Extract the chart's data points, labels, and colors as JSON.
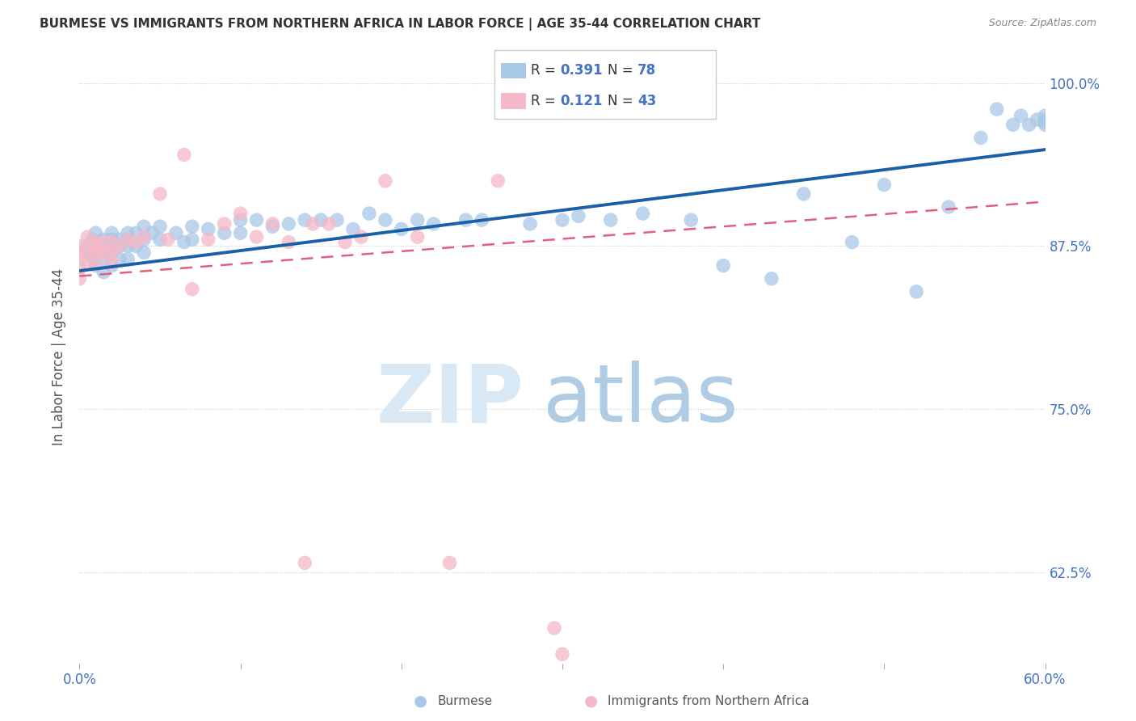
{
  "title": "BURMESE VS IMMIGRANTS FROM NORTHERN AFRICA IN LABOR FORCE | AGE 35-44 CORRELATION CHART",
  "source": "Source: ZipAtlas.com",
  "ylabel": "In Labor Force | Age 35-44",
  "xlim": [
    0.0,
    0.6
  ],
  "ylim": [
    0.555,
    1.025
  ],
  "blue_R": 0.391,
  "blue_N": 78,
  "pink_R": 0.121,
  "pink_N": 43,
  "blue_color": "#a8c8e8",
  "pink_color": "#f4b8c8",
  "trend_blue": "#1a5fa8",
  "trend_pink": "#e06080",
  "watermark_zip_color": "#d8e8f4",
  "watermark_atlas_color": "#b0cce4",
  "blue_scatter_x": [
    0.005,
    0.005,
    0.008,
    0.008,
    0.01,
    0.01,
    0.01,
    0.01,
    0.015,
    0.015,
    0.015,
    0.015,
    0.015,
    0.02,
    0.02,
    0.02,
    0.02,
    0.02,
    0.025,
    0.025,
    0.025,
    0.03,
    0.03,
    0.03,
    0.03,
    0.035,
    0.035,
    0.04,
    0.04,
    0.04,
    0.045,
    0.05,
    0.05,
    0.06,
    0.065,
    0.07,
    0.07,
    0.08,
    0.09,
    0.1,
    0.1,
    0.11,
    0.12,
    0.13,
    0.14,
    0.15,
    0.16,
    0.17,
    0.18,
    0.19,
    0.2,
    0.21,
    0.22,
    0.24,
    0.25,
    0.28,
    0.3,
    0.31,
    0.33,
    0.35,
    0.38,
    0.4,
    0.43,
    0.45,
    0.48,
    0.5,
    0.52,
    0.54,
    0.56,
    0.57,
    0.58,
    0.585,
    0.59,
    0.595,
    0.6,
    0.6,
    0.6,
    0.6
  ],
  "blue_scatter_y": [
    0.875,
    0.87,
    0.88,
    0.865,
    0.885,
    0.875,
    0.87,
    0.86,
    0.88,
    0.875,
    0.87,
    0.865,
    0.855,
    0.885,
    0.88,
    0.875,
    0.87,
    0.86,
    0.88,
    0.875,
    0.865,
    0.885,
    0.88,
    0.875,
    0.865,
    0.885,
    0.875,
    0.89,
    0.88,
    0.87,
    0.885,
    0.89,
    0.88,
    0.885,
    0.878,
    0.89,
    0.88,
    0.888,
    0.885,
    0.895,
    0.885,
    0.895,
    0.89,
    0.892,
    0.895,
    0.895,
    0.895,
    0.888,
    0.9,
    0.895,
    0.888,
    0.895,
    0.892,
    0.895,
    0.895,
    0.892,
    0.895,
    0.898,
    0.895,
    0.9,
    0.895,
    0.86,
    0.85,
    0.915,
    0.878,
    0.922,
    0.84,
    0.905,
    0.958,
    0.98,
    0.968,
    0.975,
    0.968,
    0.972,
    0.972,
    0.97,
    0.968,
    0.975
  ],
  "pink_scatter_x": [
    0.0,
    0.0,
    0.0,
    0.0,
    0.0,
    0.005,
    0.005,
    0.005,
    0.008,
    0.01,
    0.01,
    0.01,
    0.012,
    0.015,
    0.015,
    0.02,
    0.02,
    0.02,
    0.025,
    0.03,
    0.035,
    0.04,
    0.05,
    0.055,
    0.065,
    0.07,
    0.08,
    0.09,
    0.1,
    0.11,
    0.12,
    0.13,
    0.14,
    0.145,
    0.155,
    0.165,
    0.175,
    0.19,
    0.21,
    0.23,
    0.26,
    0.295,
    0.3
  ],
  "pink_scatter_y": [
    0.875,
    0.87,
    0.865,
    0.858,
    0.85,
    0.882,
    0.872,
    0.862,
    0.875,
    0.878,
    0.87,
    0.862,
    0.872,
    0.878,
    0.87,
    0.878,
    0.87,
    0.862,
    0.875,
    0.88,
    0.878,
    0.882,
    0.915,
    0.88,
    0.945,
    0.842,
    0.88,
    0.892,
    0.9,
    0.882,
    0.892,
    0.878,
    0.632,
    0.892,
    0.892,
    0.878,
    0.882,
    0.925,
    0.882,
    0.632,
    0.925,
    0.582,
    0.562
  ]
}
